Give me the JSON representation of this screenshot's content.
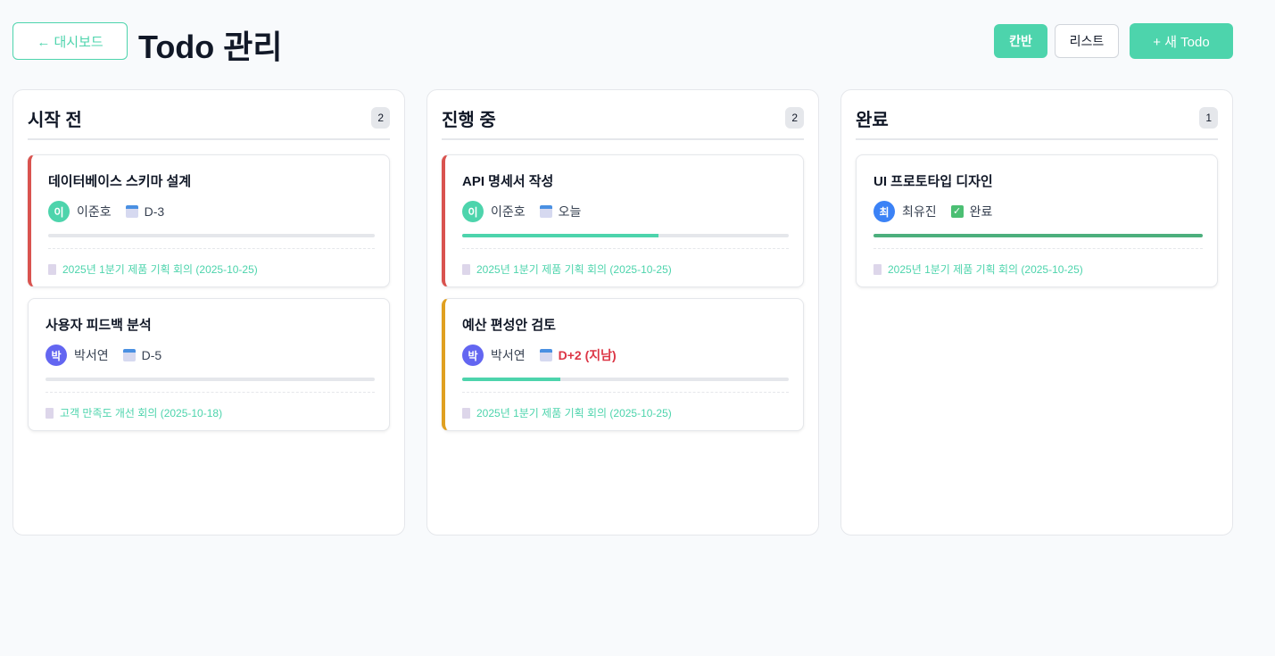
{
  "header": {
    "back_label": "← 대시보드",
    "title": "Todo 관리",
    "view_kanban": "칸반",
    "view_list": "리스트",
    "new_label": "+ 새 Todo"
  },
  "columns": [
    {
      "title": "시작 전",
      "count": "2",
      "cards": [
        {
          "title": "데이터베이스 스키마 설계",
          "avatar": "이",
          "assignee": "이준호",
          "due": "D-3",
          "progress": 0,
          "meeting": "2025년 1분기 제품 기획 회의 (2025-10-25)",
          "border": "#d9534f",
          "avatar_color": "#4dd4ac"
        },
        {
          "title": "사용자 피드백 분석",
          "avatar": "박",
          "assignee": "박서연",
          "due": "D-5",
          "progress": 0,
          "meeting": "고객 만족도 개선 회의 (2025-10-18)",
          "border": "",
          "avatar_color": "#6366f1"
        }
      ]
    },
    {
      "title": "진행 중",
      "count": "2",
      "cards": [
        {
          "title": "API 명세서 작성",
          "avatar": "이",
          "assignee": "이준호",
          "due": "오늘",
          "progress": 60,
          "meeting": "2025년 1분기 제품 기획 회의 (2025-10-25)",
          "border": "#d9534f",
          "avatar_color": "#4dd4ac"
        },
        {
          "title": "예산 편성안 검토",
          "avatar": "박",
          "assignee": "박서연",
          "due": "D+2 (지남)",
          "overdue": true,
          "progress": 30,
          "meeting": "2025년 1분기 제품 기획 회의 (2025-10-25)",
          "border": "#e0a020",
          "avatar_color": "#6366f1"
        }
      ]
    },
    {
      "title": "완료",
      "count": "1",
      "cards": [
        {
          "title": "UI 프로토타입 디자인",
          "avatar": "최",
          "assignee": "최유진",
          "due": "완료",
          "done": true,
          "progress": 100,
          "meeting": "2025년 1분기 제품 기획 회의 (2025-10-25)",
          "border": "",
          "avatar_color": "#3b82f6",
          "bar_color": "#4caf7d"
        }
      ]
    }
  ]
}
